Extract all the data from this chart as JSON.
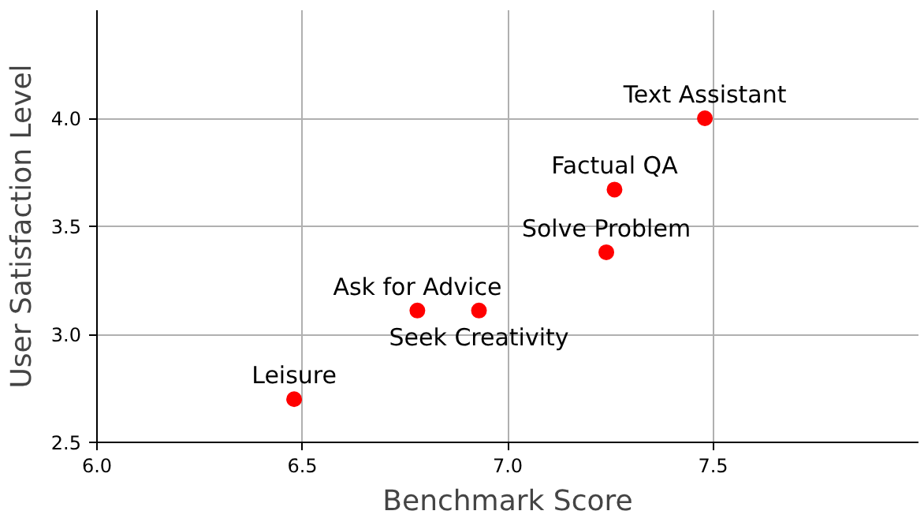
{
  "chart_data": {
    "type": "scatter",
    "xlabel": "Benchmark Score",
    "ylabel": "User Satisfaction Level",
    "x": [
      6.48,
      6.78,
      6.93,
      7.24,
      7.26,
      7.48
    ],
    "series": [
      {
        "color": "#ff0000",
        "values": [
          2.7,
          3.11,
          3.11,
          3.38,
          3.67,
          4.0
        ]
      }
    ],
    "annotations": [
      {
        "text": "Leisure",
        "x": 6.48,
        "y": 2.7
      },
      {
        "text": "Ask for Advice",
        "x": 6.78,
        "y": 3.11
      },
      {
        "text": "Seek Creativity",
        "x": 6.93,
        "y": 3.11
      },
      {
        "text": "Solve Problem",
        "x": 7.24,
        "y": 3.38
      },
      {
        "text": "Factual QA",
        "x": 7.26,
        "y": 3.67
      },
      {
        "text": "Text Assistant",
        "x": 7.48,
        "y": 4.0
      }
    ],
    "xlim": [
      6.0,
      8.0
    ],
    "ylim": [
      2.5,
      4.5
    ],
    "xticks": [
      {
        "value": 6.0,
        "label": "6.0"
      },
      {
        "value": 6.5,
        "label": "6.5"
      },
      {
        "value": 7.0,
        "label": "7.0"
      },
      {
        "value": 7.5,
        "label": "7.5"
      }
    ],
    "yticks": [
      {
        "value": 2.5,
        "label": "2.5"
      },
      {
        "value": 3.0,
        "label": "3.0"
      },
      {
        "value": 3.5,
        "label": "3.5"
      },
      {
        "value": 4.0,
        "label": "4.0"
      }
    ],
    "grid": true,
    "marker": "circle"
  }
}
